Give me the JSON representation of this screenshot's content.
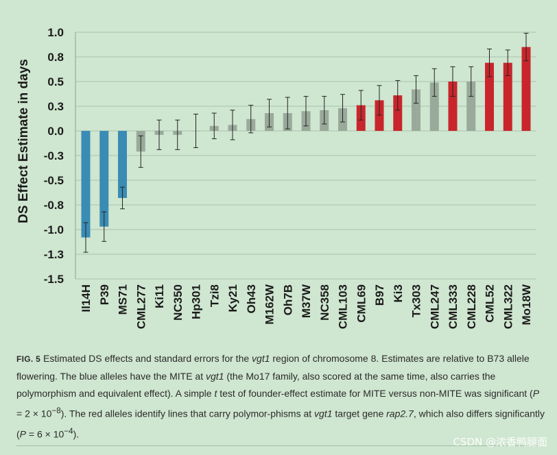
{
  "chart_data": {
    "type": "bar",
    "ylabel": "DS Effect Estimate in days",
    "xlabel": "",
    "ylim": [
      -1.5,
      1.0
    ],
    "y_ticks": [
      {
        "value": 1.0,
        "label": "1.0"
      },
      {
        "value": 0.75,
        "label": "0.8"
      },
      {
        "value": 0.5,
        "label": "0.5"
      },
      {
        "value": 0.25,
        "label": "0.3"
      },
      {
        "value": 0.0,
        "label": "0.0"
      },
      {
        "value": -0.25,
        "label": "-0.3"
      },
      {
        "value": -0.5,
        "label": "-0.5"
      },
      {
        "value": -0.75,
        "label": "-0.8"
      },
      {
        "value": -1.0,
        "label": "-1.0"
      },
      {
        "value": -1.25,
        "label": "-1.3"
      },
      {
        "value": -1.5,
        "label": "-1.5"
      }
    ],
    "grid": true,
    "categories": [
      "Il14H",
      "P39",
      "MS71",
      "CML277",
      "Ki11",
      "NC350",
      "Hp301",
      "Tzi8",
      "Ky21",
      "Oh43",
      "M162W",
      "Oh7B",
      "M37W",
      "NC358",
      "CML103",
      "CML69",
      "B97",
      "Ki3",
      "Tx303",
      "CML247",
      "CML333",
      "CML228",
      "CML52",
      "CML322",
      "Mo18W"
    ],
    "values": [
      -1.08,
      -0.97,
      -0.68,
      -0.21,
      -0.04,
      -0.04,
      0.0,
      0.05,
      0.06,
      0.12,
      0.18,
      0.18,
      0.2,
      0.21,
      0.23,
      0.26,
      0.31,
      0.36,
      0.42,
      0.49,
      0.5,
      0.5,
      0.69,
      0.69,
      0.85
    ],
    "errors": [
      0.15,
      0.15,
      0.11,
      0.16,
      0.15,
      0.15,
      0.17,
      0.13,
      0.15,
      0.14,
      0.14,
      0.16,
      0.15,
      0.14,
      0.14,
      0.15,
      0.15,
      0.15,
      0.14,
      0.14,
      0.15,
      0.15,
      0.14,
      0.13,
      0.14
    ],
    "groups": [
      "mite",
      "mite",
      "mite",
      "other",
      "other",
      "other",
      "other",
      "other",
      "other",
      "other",
      "other",
      "other",
      "other",
      "other",
      "other",
      "rap",
      "rap",
      "rap",
      "other",
      "other",
      "rap",
      "other",
      "rap",
      "rap",
      "rap"
    ],
    "colors": {
      "mite": "#3a8cb5",
      "other": "#99aa9b",
      "rap": "#c8262c",
      "grid": "#a8c3aa",
      "axis": "#8aa58c",
      "error": "#222222"
    }
  },
  "caption": {
    "lead": "FIG. 5",
    "t1": " Estimated DS effects and standard errors for the ",
    "i1": "vgt1",
    "t2": " region of chromosome 8. Estimates are relative to B73 allele flowering. The blue alleles have the MITE at ",
    "i2": "vgt1",
    "t3": " (the Mo17 family, also scored at the same time, also carries the polymorphism and equivalent effect). A simple ",
    "i3": "t",
    "t4": " test of founder-effect estimate for MITE versus non-MITE was significant (",
    "i4": "P",
    "t5": " = 2 × 10",
    "sup1": "−8",
    "t6": "). The red alleles identify lines that carry polymor-phisms at ",
    "i5": "vgt1",
    "t7": " target gene ",
    "i6": "rap2.7",
    "t8": ", which also differs significantly (",
    "i7": "P",
    "t9": " = 6 × 10",
    "sup2": "−4",
    "t10": ")."
  },
  "watermark": "CSDN @浓香鸭腿面"
}
